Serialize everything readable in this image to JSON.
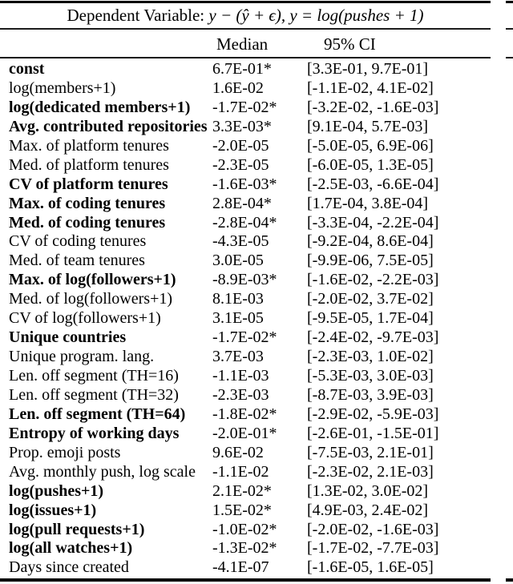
{
  "table": {
    "title": {
      "prefix": "Dependent Variable: ",
      "math": "y − (ŷ + ϵ), y = log(pushes + 1)"
    },
    "columns": {
      "median": "Median",
      "ci": "95% CI"
    },
    "rows": [
      {
        "label": "const",
        "median": "6.7E-01*",
        "ci": "[3.3E-01, 9.7E-01]",
        "bold": true
      },
      {
        "label": "log(members+1)",
        "median": "1.6E-02",
        "ci": "[-1.1E-02, 4.1E-02]",
        "bold": false
      },
      {
        "label": "log(dedicated members+1)",
        "median": "-1.7E-02*",
        "ci": "[-3.2E-02, -1.6E-03]",
        "bold": true
      },
      {
        "label": "Avg. contributed repositories",
        "median": "3.3E-03*",
        "ci": "[9.1E-04, 5.7E-03]",
        "bold": true
      },
      {
        "label": "Max. of platform tenures",
        "median": "-2.0E-05",
        "ci": "[-5.0E-05, 6.9E-06]",
        "bold": false
      },
      {
        "label": "Med. of platform tenures",
        "median": "-2.3E-05",
        "ci": "[-6.0E-05, 1.3E-05]",
        "bold": false
      },
      {
        "label": "CV of platform tenures",
        "median": "-1.6E-03*",
        "ci": "[-2.5E-03, -6.6E-04]",
        "bold": true
      },
      {
        "label": "Max. of coding tenures",
        "median": "2.8E-04*",
        "ci": "[1.7E-04, 3.8E-04]",
        "bold": true
      },
      {
        "label": "Med. of coding tenures",
        "median": "-2.8E-04*",
        "ci": "[-3.3E-04, -2.2E-04]",
        "bold": true
      },
      {
        "label": "CV of coding tenures",
        "median": "-4.3E-05",
        "ci": "[-9.2E-04, 8.6E-04]",
        "bold": false
      },
      {
        "label": "Med. of team tenures",
        "median": "3.0E-05",
        "ci": "[-9.9E-06, 7.5E-05]",
        "bold": false
      },
      {
        "label": "Max. of log(followers+1)",
        "median": "-8.9E-03*",
        "ci": "[-1.6E-02, -2.2E-03]",
        "bold": true
      },
      {
        "label": "Med. of log(followers+1)",
        "median": "8.1E-03",
        "ci": "[-2.0E-02, 3.7E-02]",
        "bold": false
      },
      {
        "label": "CV of log(followers+1)",
        "median": "3.1E-05",
        "ci": "[-9.5E-05, 1.7E-04]",
        "bold": false
      },
      {
        "label": "Unique countries",
        "median": "-1.7E-02*",
        "ci": "[-2.4E-02, -9.7E-03]",
        "bold": true
      },
      {
        "label": "Unique program. lang.",
        "median": "3.7E-03",
        "ci": "[-2.3E-03, 1.0E-02]",
        "bold": false
      },
      {
        "label": "Len. off segment (TH=16)",
        "median": "-1.1E-03",
        "ci": "[-5.3E-03, 3.0E-03]",
        "bold": false
      },
      {
        "label": "Len. off segment (TH=32)",
        "median": "-2.3E-03",
        "ci": "[-8.7E-03, 3.9E-03]",
        "bold": false
      },
      {
        "label": "Len. off segment (TH=64)",
        "median": "-1.8E-02*",
        "ci": "[-2.9E-02, -5.9E-03]",
        "bold": true
      },
      {
        "label": "Entropy of working days",
        "median": "-2.0E-01*",
        "ci": "[-2.6E-01, -1.5E-01]",
        "bold": true
      },
      {
        "label": "Prop. emoji posts",
        "median": "9.6E-02",
        "ci": "[-7.5E-03, 2.1E-01]",
        "bold": false
      },
      {
        "label": "Avg. monthly push, log scale",
        "median": "-1.1E-02",
        "ci": "[-2.3E-02, 2.1E-03]",
        "bold": false
      },
      {
        "label": "log(pushes+1)",
        "median": "2.1E-02*",
        "ci": "[1.3E-02, 3.0E-02]",
        "bold": true
      },
      {
        "label": "log(issues+1)",
        "median": "1.5E-02*",
        "ci": "[4.9E-03, 2.4E-02]",
        "bold": true
      },
      {
        "label": "log(pull requests+1)",
        "median": "-1.0E-02*",
        "ci": "[-2.0E-02, -1.6E-03]",
        "bold": true
      },
      {
        "label": "log(all watches+1)",
        "median": "-1.3E-02*",
        "ci": "[-1.7E-02, -7.7E-03]",
        "bold": true
      },
      {
        "label": "Days since created",
        "median": "-4.1E-07",
        "ci": "[-1.6E-05, 1.6E-05]",
        "bold": false
      }
    ]
  }
}
